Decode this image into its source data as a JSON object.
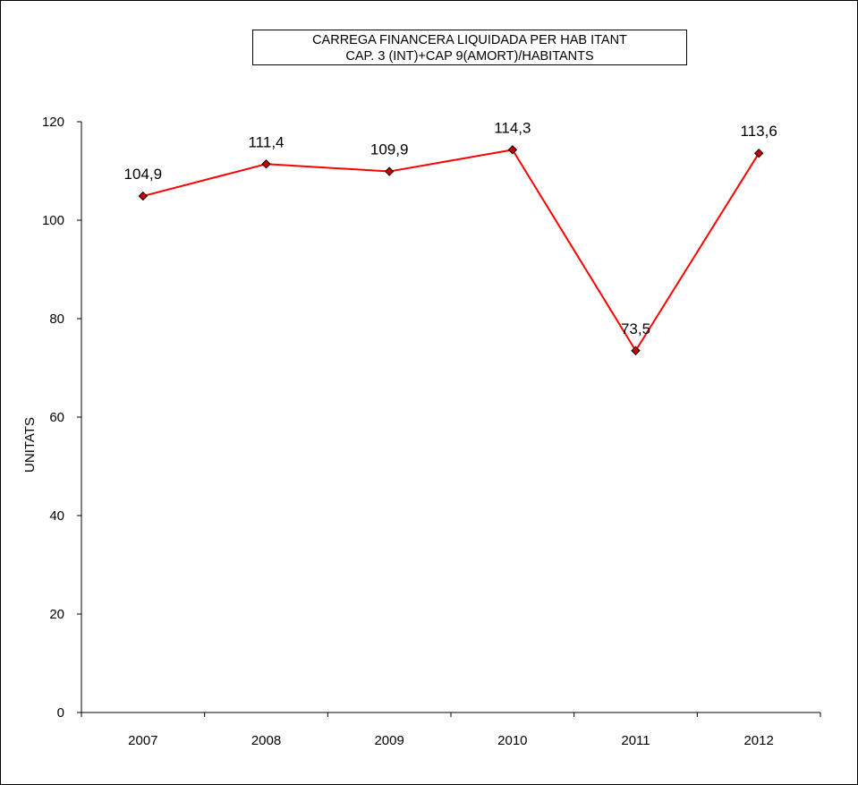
{
  "chart_data": {
    "type": "line",
    "title": "CARREGA FINANCERA LIQUIDADA PER HAB ITANT",
    "subtitle": "CAP. 3 (INT)+CAP 9(AMORT)/HABITANTS",
    "xlabel": "",
    "ylabel": "UNITATS",
    "categories": [
      "2007",
      "2008",
      "2009",
      "2010",
      "2011",
      "2012"
    ],
    "series": [
      {
        "values": [
          104.9,
          111.4,
          109.9,
          114.3,
          73.5,
          113.6
        ],
        "value_labels": [
          "104,9",
          "111,4",
          "109,9",
          "114,3",
          "73,5",
          "113,6"
        ],
        "color": "#ff0000",
        "marker_color": "#cc0000",
        "marker": "diamond"
      }
    ],
    "ylim": [
      0,
      120
    ],
    "yticks": [
      0,
      20,
      40,
      60,
      80,
      100,
      120
    ],
    "grid": false,
    "legend": "none"
  }
}
